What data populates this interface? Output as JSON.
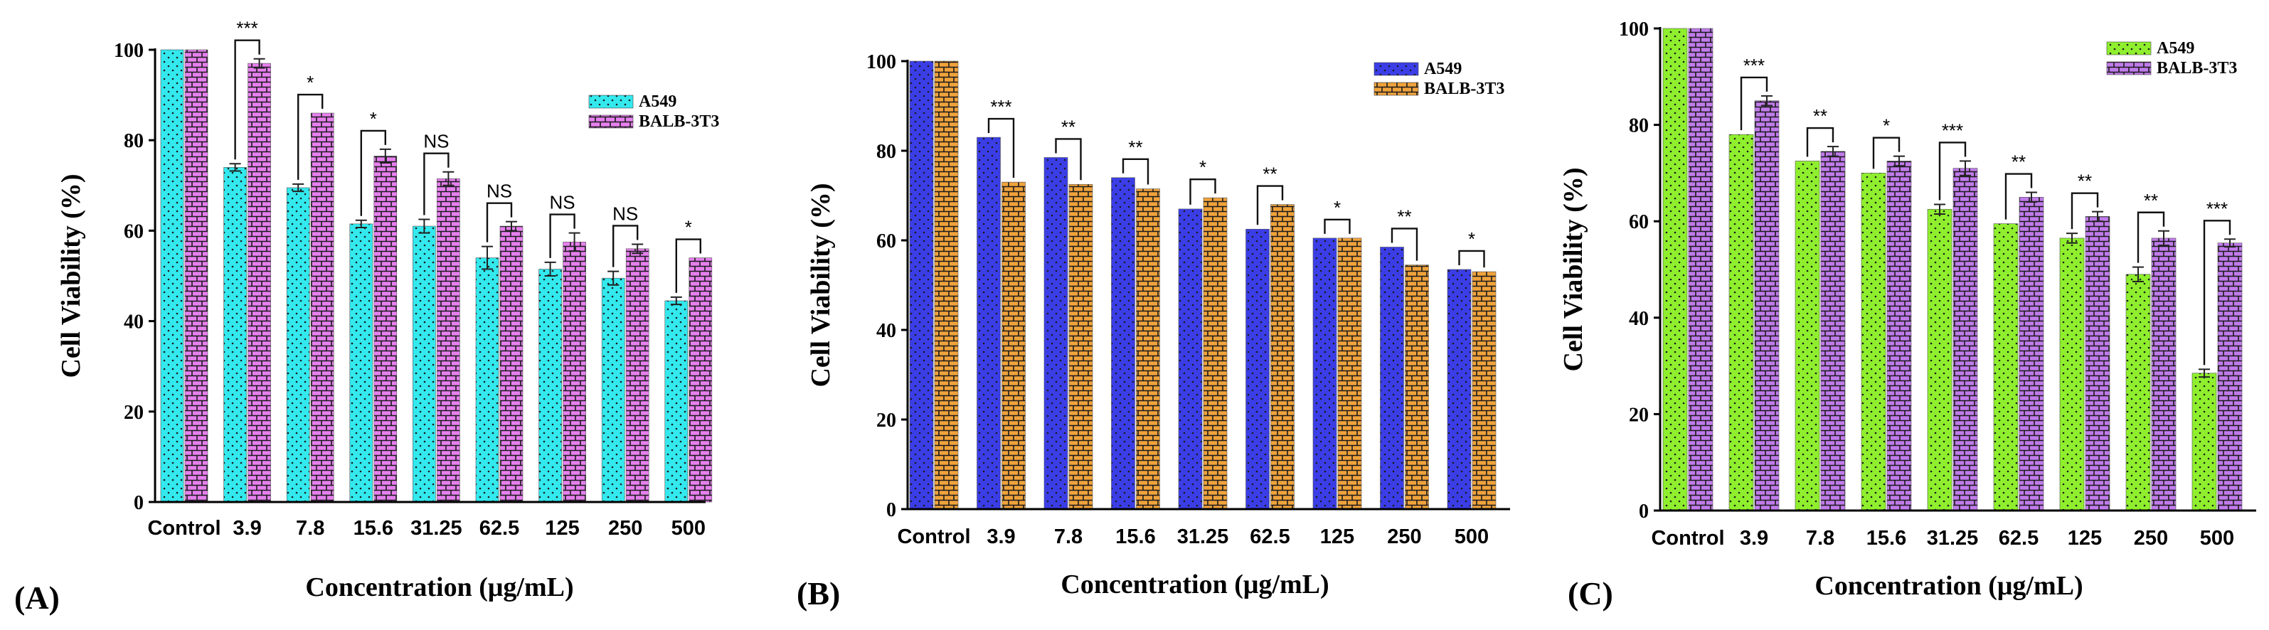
{
  "colors": {
    "cyan": "#33E9EE",
    "pink": "#E680EE",
    "blue": "#3B3EE6",
    "orange": "#F0A33C",
    "green": "#8FEF2E",
    "purple": "#C07BEA"
  },
  "chart_data": [
    {
      "type": "bar",
      "panel_label": "(A)",
      "categories": [
        "Control",
        "3.9",
        "7.8",
        "15.6",
        "31.25",
        "62.5",
        "125",
        "250",
        "500"
      ],
      "xlabel": "Concentration (μg/mL)",
      "ylabel": "Cell Viability (%)",
      "ylim": [
        0,
        100
      ],
      "yticks": [
        "0",
        "20",
        "40",
        "60",
        "80",
        "100"
      ],
      "legend_position": "top-right",
      "series": [
        {
          "name": "A549",
          "color": "#33E9EE",
          "values": [
            100,
            74,
            69.5,
            61.5,
            61,
            54,
            51.5,
            49.5,
            44.5
          ],
          "errors": [
            0,
            0.8,
            0.8,
            0.8,
            1.5,
            2.5,
            1.5,
            1.5,
            0.8
          ]
        },
        {
          "name": "BALB-3T3",
          "color": "#E680EE",
          "values": [
            100,
            97,
            86,
            76.5,
            71.5,
            61,
            57.5,
            56,
            54
          ],
          "errors": [
            0,
            1,
            0,
            1.5,
            1.5,
            1,
            2,
            1,
            0
          ]
        }
      ],
      "significance": [
        "",
        "***",
        "*",
        "*",
        "NS",
        "NS",
        "NS",
        "NS",
        "*"
      ]
    },
    {
      "type": "bar",
      "panel_label": "(B)",
      "categories": [
        "Control",
        "3.9",
        "7.8",
        "15.6",
        "31.25",
        "62.5",
        "125",
        "250",
        "500"
      ],
      "xlabel": "Concentration (μg/mL)",
      "ylabel": "Cell Viability (%)",
      "ylim": [
        0,
        100
      ],
      "yticks": [
        "0",
        "20",
        "40",
        "60",
        "80",
        "100"
      ],
      "legend_position": "top-right",
      "series": [
        {
          "name": "A549",
          "color": "#3B3EE6",
          "values": [
            100,
            83,
            78.5,
            74,
            67,
            62.5,
            60.5,
            58.5,
            53.5
          ],
          "errors": [
            0,
            0,
            0,
            0,
            0,
            0,
            0,
            0,
            0
          ]
        },
        {
          "name": "BALB-3T3",
          "color": "#F0A33C",
          "values": [
            100,
            73,
            72.5,
            71.5,
            69.5,
            68,
            60.5,
            54.5,
            53
          ],
          "errors": [
            0,
            0,
            0,
            0,
            0,
            0,
            0,
            0,
            0
          ]
        }
      ],
      "significance": [
        "",
        "***",
        "**",
        "**",
        "*",
        "**",
        "*",
        "**",
        "*"
      ]
    },
    {
      "type": "bar",
      "panel_label": "(C)",
      "categories": [
        "Control",
        "3.9",
        "7.8",
        "15.6",
        "31.25",
        "62.5",
        "125",
        "250",
        "500"
      ],
      "xlabel": "Concentration (μg/mL)",
      "ylabel": "Cell Viability (%)",
      "ylim": [
        0,
        100
      ],
      "yticks": [
        "0",
        "20",
        "40",
        "60",
        "80",
        "100"
      ],
      "legend_position": "top-right",
      "series": [
        {
          "name": "A549",
          "color": "#8FEF2E",
          "values": [
            100,
            78,
            72.5,
            70,
            62.5,
            59.5,
            56.5,
            49,
            28.5
          ],
          "errors": [
            0,
            0,
            0,
            0,
            1,
            0,
            1,
            1.5,
            0.8
          ]
        },
        {
          "name": "BALB-3T3",
          "color": "#C07BEA",
          "values": [
            100,
            85,
            74.5,
            72.5,
            71,
            65,
            61,
            56.5,
            55.5
          ],
          "errors": [
            0,
            1,
            1,
            1,
            1.5,
            1,
            1,
            1.5,
            0.8
          ]
        }
      ],
      "significance": [
        "",
        "***",
        "**",
        "*",
        "***",
        "**",
        "**",
        "**",
        "***"
      ]
    }
  ]
}
